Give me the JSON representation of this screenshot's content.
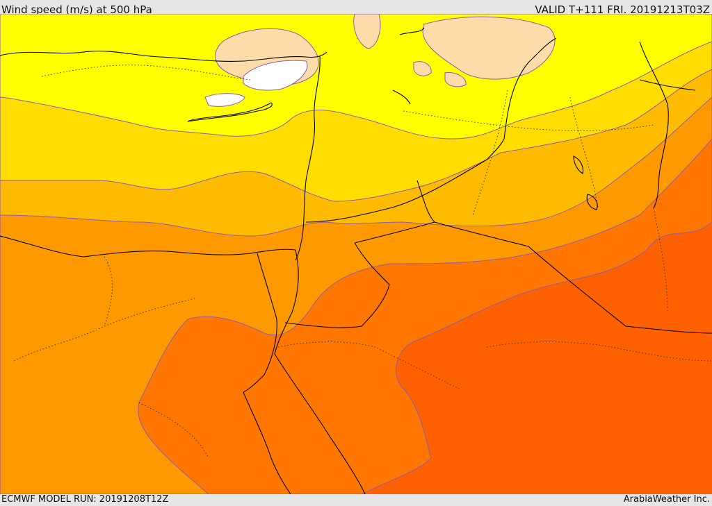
{
  "header": {
    "title": "Wind speed (m/s) at 500 hPa",
    "valid": "VALID T+111 FRI. 20191213T03Z"
  },
  "footer": {
    "model_run": "ECMWF MODEL RUN: 20191208T12Z",
    "credit": "ArabiaWeather Inc."
  },
  "colors": {
    "band_white": "#ffffff",
    "band_peach": "#fcdca8",
    "band_light_yellow": "#ffff00",
    "band_yellow": "#ffdd00",
    "band_gold": "#ffbb00",
    "band_orange": "#ff9900",
    "band_dark_orange": "#ff7700",
    "band_red_orange": "#ff6000",
    "contour_line": "#8c5ab4",
    "border_line": "#000000"
  }
}
